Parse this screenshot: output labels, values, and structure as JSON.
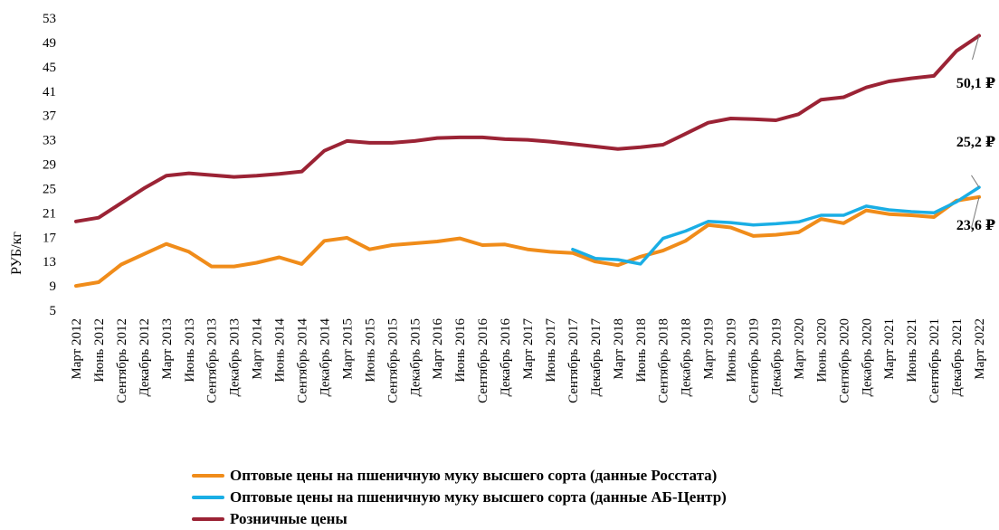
{
  "chart_data": {
    "type": "line",
    "ylabel": "РУБ/кг",
    "ylim": [
      5,
      53
    ],
    "yticks": [
      5,
      9,
      13,
      17,
      21,
      25,
      29,
      33,
      37,
      41,
      45,
      49,
      53
    ],
    "grid": false,
    "legend_position": "bottom",
    "x": [
      "Март 2012",
      "Июнь 2012",
      "Сентябрь 2012",
      "Декабрь 2012",
      "Март 2013",
      "Июнь 2013",
      "Сентябрь 2013",
      "Декабрь 2013",
      "Март 2014",
      "Июнь 2014",
      "Сентябрь 2014",
      "Декабрь 2014",
      "Март 2015",
      "Июнь 2015",
      "Сентябрь 2015",
      "Декабрь 2015",
      "Март 2016",
      "Июнь 2016",
      "Сентябрь 2016",
      "Декабрь 2016",
      "Март 2017",
      "Июнь 2017",
      "Сентябрь 2017",
      "Декабрь 2017",
      "Март 2018",
      "Июнь 2018",
      "Сентябрь 2018",
      "Декабрь 2018",
      "Март 2019",
      "Июнь 2019",
      "Сентябрь 2019",
      "Декабрь 2019",
      "Март 2020",
      "Июнь 2020",
      "Сентябрь 2020",
      "Декабрь 2020",
      "Март 2021",
      "Июнь 2021",
      "Сентябрь 2021",
      "Декабрь 2021",
      "Март 2022"
    ],
    "series": [
      {
        "name": "Оптовые цены на пшеничную муку высшего сорта (данные Росстата)",
        "color": "#f08c1a",
        "values": [
          9.0,
          9.6,
          12.5,
          14.2,
          15.9,
          14.6,
          12.2,
          12.2,
          12.8,
          13.7,
          12.6,
          16.4,
          16.9,
          15.0,
          15.7,
          16.0,
          16.3,
          16.8,
          15.7,
          15.8,
          15.0,
          14.6,
          14.4,
          13.0,
          12.4,
          13.8,
          14.8,
          16.4,
          19.0,
          18.6,
          17.2,
          17.4,
          17.8,
          20.0,
          19.3,
          21.4,
          20.8,
          20.6,
          20.3,
          23.0,
          23.6
        ]
      },
      {
        "name": "Оптовые цены на пшеничную муку высшего сорта (данные АБ-Центр)",
        "color": "#1aaee5",
        "values": [
          null,
          null,
          null,
          null,
          null,
          null,
          null,
          null,
          null,
          null,
          null,
          null,
          null,
          null,
          null,
          null,
          null,
          null,
          null,
          null,
          null,
          null,
          15.0,
          13.5,
          13.3,
          12.6,
          16.8,
          18.0,
          19.6,
          19.4,
          19.0,
          19.2,
          19.5,
          20.6,
          20.6,
          22.1,
          21.5,
          21.2,
          21.0,
          22.8,
          25.2
        ]
      },
      {
        "name": "Розничные цены",
        "color": "#9b2335",
        "values": [
          19.6,
          20.2,
          22.6,
          25.0,
          27.1,
          27.5,
          27.2,
          26.9,
          27.1,
          27.4,
          27.8,
          31.2,
          32.8,
          32.5,
          32.5,
          32.8,
          33.3,
          33.4,
          33.4,
          33.1,
          33.0,
          32.7,
          32.3,
          31.9,
          31.5,
          31.8,
          32.2,
          34.0,
          35.8,
          36.5,
          36.4,
          36.2,
          37.2,
          39.6,
          40.0,
          41.6,
          42.6,
          43.1,
          43.5,
          47.6,
          50.1
        ]
      }
    ],
    "annotations": [
      {
        "text": "50,1 ₽",
        "series": 2
      },
      {
        "text": "25,2 ₽",
        "series": 1
      },
      {
        "text": "23,6 ₽",
        "series": 0
      }
    ]
  }
}
